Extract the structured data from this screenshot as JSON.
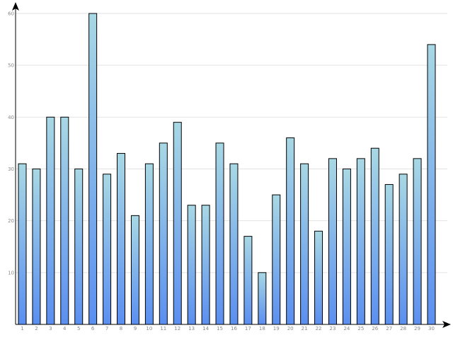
{
  "chart_data": {
    "type": "bar",
    "categories": [
      "1",
      "2",
      "3",
      "4",
      "5",
      "6",
      "7",
      "8",
      "9",
      "10",
      "11",
      "12",
      "13",
      "14",
      "15",
      "16",
      "17",
      "18",
      "19",
      "20",
      "21",
      "22",
      "23",
      "24",
      "25",
      "26",
      "27",
      "28",
      "29",
      "30"
    ],
    "values": [
      31,
      30,
      40,
      40,
      30,
      60,
      29,
      33,
      21,
      31,
      35,
      39,
      23,
      23,
      35,
      31,
      17,
      10,
      25,
      36,
      31,
      18,
      32,
      30,
      32,
      34,
      27,
      29,
      32,
      54
    ],
    "ylim": [
      0,
      60
    ],
    "yticks": [
      10,
      20,
      30,
      40,
      50,
      60
    ],
    "grid": true,
    "bar_color_top": "#a8d8e4",
    "bar_color_bottom": "#5b8ff0",
    "title": "",
    "xlabel": "",
    "ylabel": ""
  }
}
